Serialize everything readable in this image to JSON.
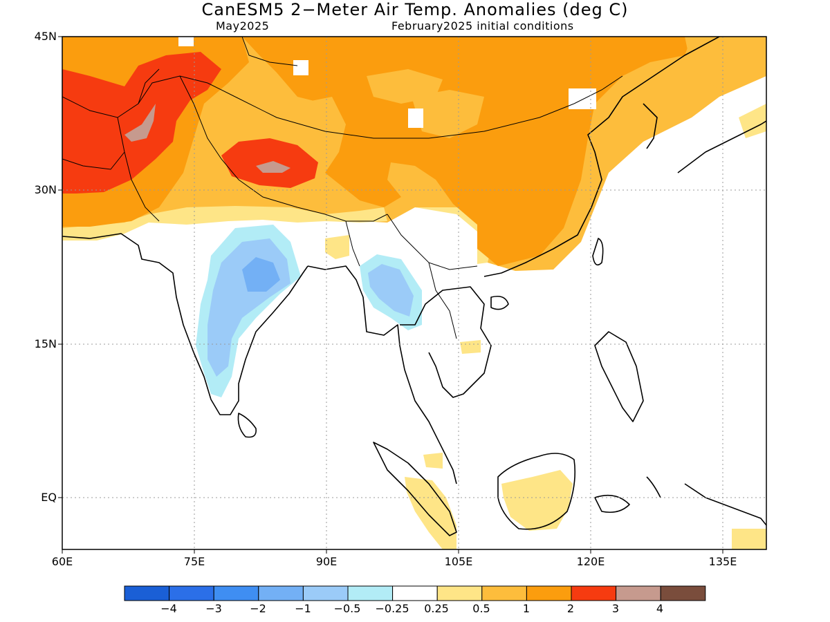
{
  "title": "CanESM5 2−Meter Air Temp. Anomalies (deg C)",
  "subtitle_left": "May2025",
  "subtitle_right": "February2025 initial conditions",
  "map": {
    "region": "South and East Asia",
    "lon_range": [
      60,
      140
    ],
    "lat_range": [
      -5,
      45
    ],
    "lat_ticks": [
      {
        "value": 45,
        "label": "45N"
      },
      {
        "value": 30,
        "label": "30N"
      },
      {
        "value": 15,
        "label": "15N"
      },
      {
        "value": 0,
        "label": "EQ"
      }
    ],
    "lon_ticks": [
      {
        "value": 60,
        "label": "60E"
      },
      {
        "value": 75,
        "label": "75E"
      },
      {
        "value": 90,
        "label": "90E"
      },
      {
        "value": 105,
        "label": "105E"
      },
      {
        "value": 120,
        "label": "120E"
      },
      {
        "value": 135,
        "label": "135E"
      }
    ],
    "grid": "dotted",
    "anomaly_regions": [
      {
        "area": "Northern Asia / China interior",
        "category": "1 to 2"
      },
      {
        "area": "Afghanistan / Pakistan",
        "category": "2 to 3"
      },
      {
        "area": "Western Tibet",
        "category": "2 to 3"
      },
      {
        "area": "Central India",
        "category": "-1 to -0.5"
      },
      {
        "area": "Myanmar",
        "category": "-1 to -0.5"
      },
      {
        "area": "Borneo",
        "category": "0.25 to 0.5"
      },
      {
        "area": "Sumatra",
        "category": "0.25 to 0.5"
      }
    ]
  },
  "colorbar": {
    "colors": [
      "#1a5fd6",
      "#2b6fe8",
      "#3f8ef2",
      "#73b0f5",
      "#9bcbf8",
      "#b2ecf6",
      "#ffffff",
      "#fee587",
      "#fdbd3c",
      "#fb9d0e",
      "#f63b10",
      "#c69a8e",
      "#7a4d3c"
    ],
    "labels": [
      "−4",
      "−3",
      "−2",
      "−1",
      "−0.5",
      "−0.25",
      "0.25",
      "0.5",
      "1",
      "2",
      "3",
      "4"
    ]
  }
}
